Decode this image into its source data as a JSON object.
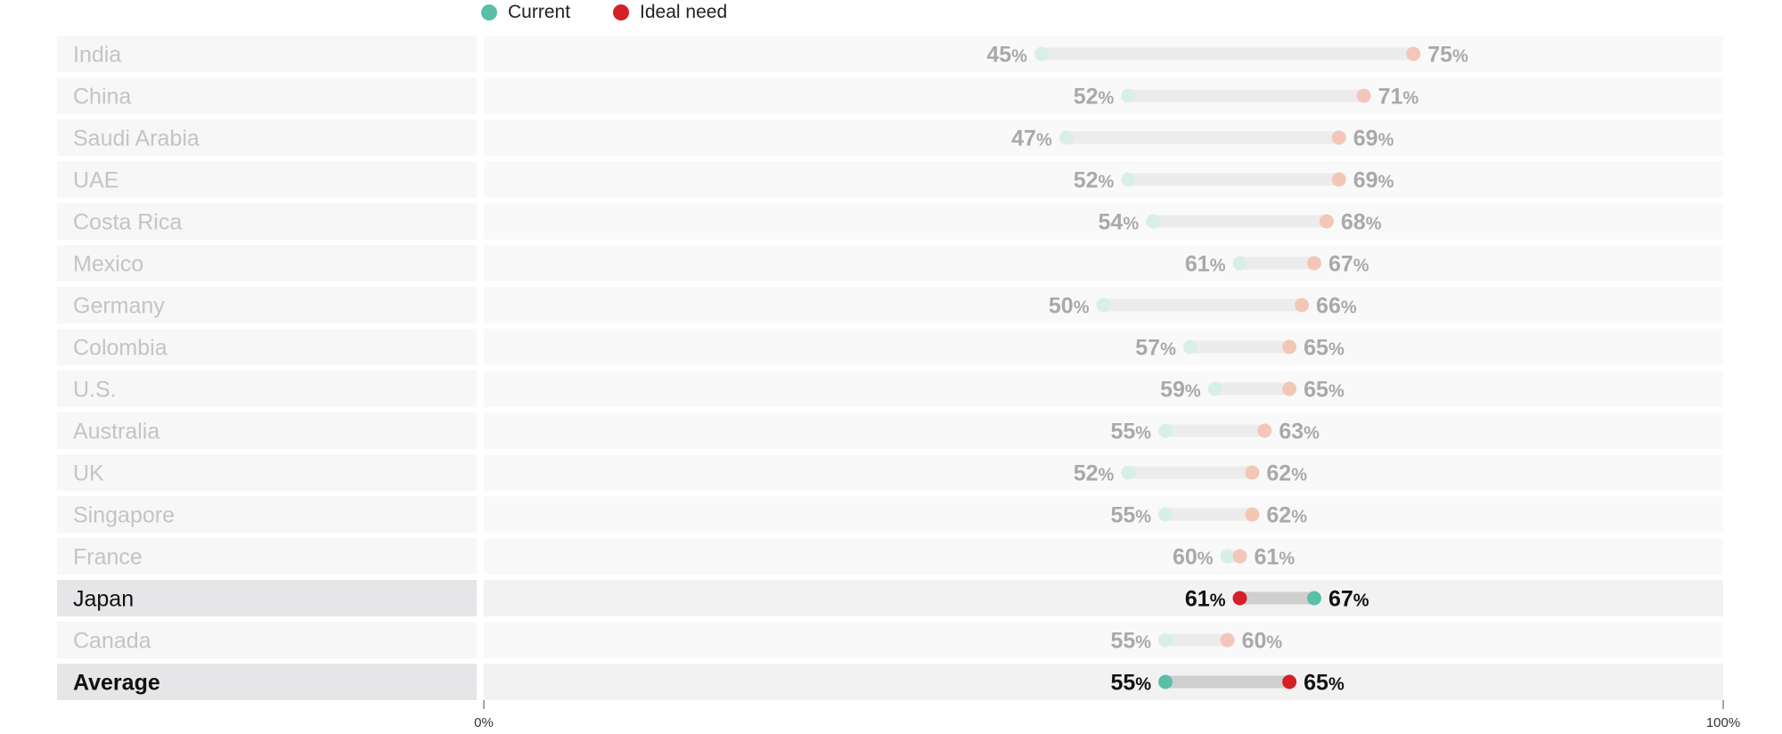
{
  "chart_data": {
    "type": "dumbbell",
    "legend": [
      {
        "name": "Current",
        "color": "#5bbfa8"
      },
      {
        "name": "Ideal need",
        "color": "#d71f28"
      }
    ],
    "xlim": [
      0,
      100
    ],
    "x_ticks": [
      "0%",
      "100%"
    ],
    "rows": [
      {
        "label": "India",
        "current": 45,
        "ideal": 75,
        "current_label": "45%",
        "ideal_label": "75%",
        "highlight": false,
        "bold": false
      },
      {
        "label": "China",
        "current": 52,
        "ideal": 71,
        "current_label": "52%",
        "ideal_label": "71%",
        "highlight": false,
        "bold": false
      },
      {
        "label": "Saudi Arabia",
        "current": 47,
        "ideal": 69,
        "current_label": "47%",
        "ideal_label": "69%",
        "highlight": false,
        "bold": false
      },
      {
        "label": "UAE",
        "current": 52,
        "ideal": 69,
        "current_label": "52%",
        "ideal_label": "69%",
        "highlight": false,
        "bold": false
      },
      {
        "label": "Costa Rica",
        "current": 54,
        "ideal": 68,
        "current_label": "54%",
        "ideal_label": "68%",
        "highlight": false,
        "bold": false
      },
      {
        "label": "Mexico",
        "current": 61,
        "ideal": 67,
        "current_label": "61%",
        "ideal_label": "67%",
        "highlight": false,
        "bold": false
      },
      {
        "label": "Germany",
        "current": 50,
        "ideal": 66,
        "current_label": "50%",
        "ideal_label": "66%",
        "highlight": false,
        "bold": false
      },
      {
        "label": "Colombia",
        "current": 57,
        "ideal": 65,
        "current_label": "57%",
        "ideal_label": "65%",
        "highlight": false,
        "bold": false
      },
      {
        "label": "U.S.",
        "current": 59,
        "ideal": 65,
        "current_label": "59%",
        "ideal_label": "65%",
        "highlight": false,
        "bold": false
      },
      {
        "label": "Australia",
        "current": 55,
        "ideal": 63,
        "current_label": "55%",
        "ideal_label": "63%",
        "highlight": false,
        "bold": false
      },
      {
        "label": "UK",
        "current": 52,
        "ideal": 62,
        "current_label": "52%",
        "ideal_label": "62%",
        "highlight": false,
        "bold": false
      },
      {
        "label": "Singapore",
        "current": 55,
        "ideal": 62,
        "current_label": "55%",
        "ideal_label": "62%",
        "highlight": false,
        "bold": false
      },
      {
        "label": "France",
        "current": 60,
        "ideal": 61,
        "current_label": "60%",
        "ideal_label": "61%",
        "highlight": false,
        "bold": false
      },
      {
        "label": "Japan",
        "current": 67,
        "ideal": 61,
        "current_label": "67%",
        "ideal_label": "61%",
        "highlight": true,
        "bold": false
      },
      {
        "label": "Canada",
        "current": 55,
        "ideal": 60,
        "current_label": "55%",
        "ideal_label": "60%",
        "highlight": false,
        "bold": false
      },
      {
        "label": "Average",
        "current": 55,
        "ideal": 65,
        "current_label": "55%",
        "ideal_label": "65%",
        "highlight": true,
        "bold": true
      }
    ]
  }
}
